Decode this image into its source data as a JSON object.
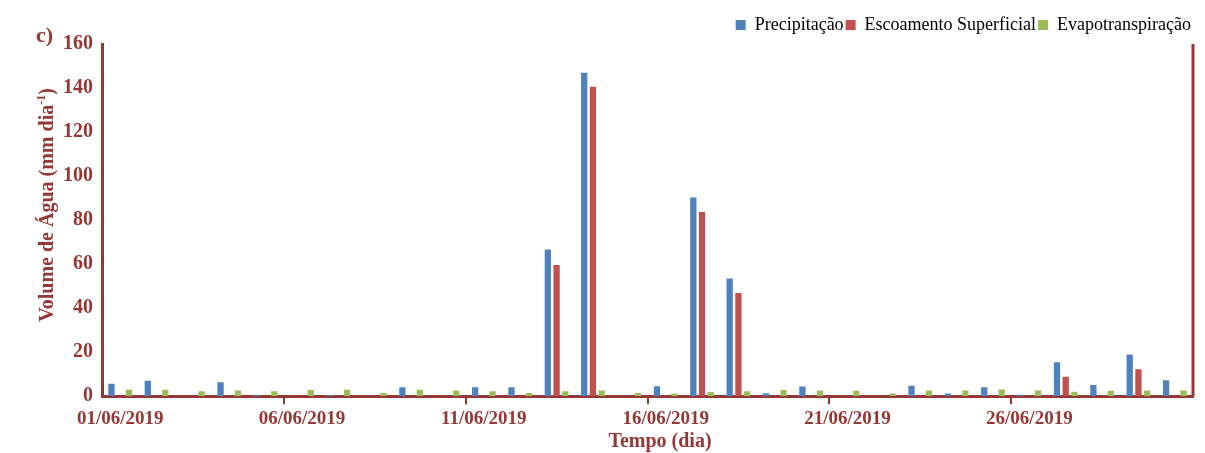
{
  "chart_data": {
    "type": "bar",
    "xlabel": "Tempo (dia)",
    "ylabel": "Volume de Água (mm dia$^{-1}$)",
    "annotations": [
      "c)"
    ],
    "categories": [
      "01/06/2019",
      null,
      null,
      null,
      null,
      "06/06/2019",
      null,
      null,
      null,
      null,
      "11/06/2019",
      null,
      null,
      null,
      null,
      "16/06/2019",
      null,
      null,
      null,
      null,
      "21/06/2019",
      null,
      null,
      null,
      null,
      "26/06/2019",
      null,
      null,
      null,
      null
    ],
    "series": [
      {
        "name": "Precipitação",
        "color": "#4f81bd",
        "values": [
          5.6,
          7.0,
          0,
          6.3,
          0.6,
          0,
          0.6,
          0,
          4.1,
          0,
          4.1,
          4.1,
          66.7,
          146.9,
          0,
          4.5,
          90.3,
          53.5,
          1.3,
          4.4,
          0,
          0,
          4.8,
          1.2,
          4.1,
          0.7,
          15.4,
          5.1,
          18.9,
          7.3
        ]
      },
      {
        "name": "Escoamento Superficial",
        "color": "#c0504d",
        "values": [
          0,
          0,
          0,
          0,
          0,
          0,
          0,
          0,
          0,
          0,
          0,
          0,
          59.6,
          140.6,
          0,
          0,
          83.7,
          46.9,
          0,
          0,
          0,
          0,
          0,
          0,
          0,
          0,
          8.8,
          0,
          12.3,
          0
        ]
      },
      {
        "name": "Evapotranspiração",
        "color": "#9bbb59",
        "values": [
          2.9,
          2.9,
          2.3,
          2.6,
          2.3,
          2.8,
          2.9,
          1.5,
          2.9,
          2.6,
          2.3,
          1.5,
          2.2,
          2.6,
          1.5,
          1.2,
          1.9,
          2.2,
          2.8,
          2.6,
          2.5,
          1.2,
          2.6,
          2.6,
          3.1,
          2.6,
          2.0,
          2.5,
          2.6,
          2.6
        ]
      }
    ],
    "ylim": [
      0,
      160
    ],
    "yticks": [
      0,
      20,
      40,
      60,
      80,
      100,
      120,
      140,
      160
    ],
    "grid": false,
    "legend": "top right"
  }
}
